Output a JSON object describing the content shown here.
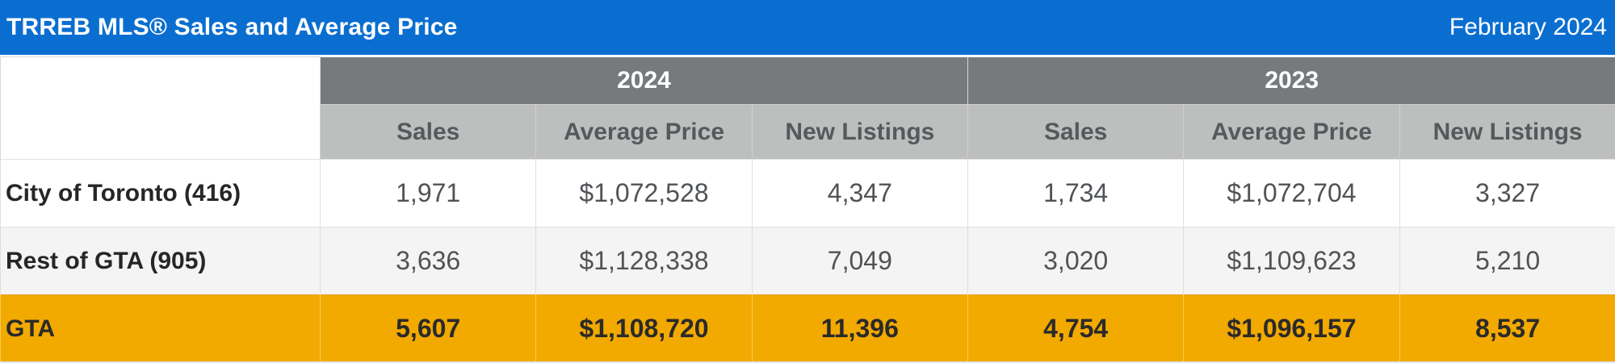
{
  "header": {
    "title": "TRREB MLS® Sales and Average Price",
    "period": "February 2024"
  },
  "table": {
    "years": [
      "2024",
      "2023"
    ],
    "columns": [
      "Sales",
      "Average Price",
      "New Listings",
      "Sales",
      "Average Price",
      "New Listings"
    ],
    "rows": [
      {
        "label": "City of Toronto (416)",
        "values": [
          "1,971",
          "$1,072,528",
          "4,347",
          "1,734",
          "$1,072,704",
          "3,327"
        ]
      },
      {
        "label": "Rest of GTA (905)",
        "values": [
          "3,636",
          "$1,128,338",
          "7,049",
          "3,020",
          "$1,109,623",
          "5,210"
        ]
      },
      {
        "label": "GTA",
        "values": [
          "5,607",
          "$1,108,720",
          "11,396",
          "4,754",
          "$1,096,157",
          "8,537"
        ]
      }
    ]
  },
  "colors": {
    "title_bar": "#0a6ed1",
    "year_header": "#767a7d",
    "column_header": "#bdbebe",
    "total_row": "#f2a900"
  }
}
